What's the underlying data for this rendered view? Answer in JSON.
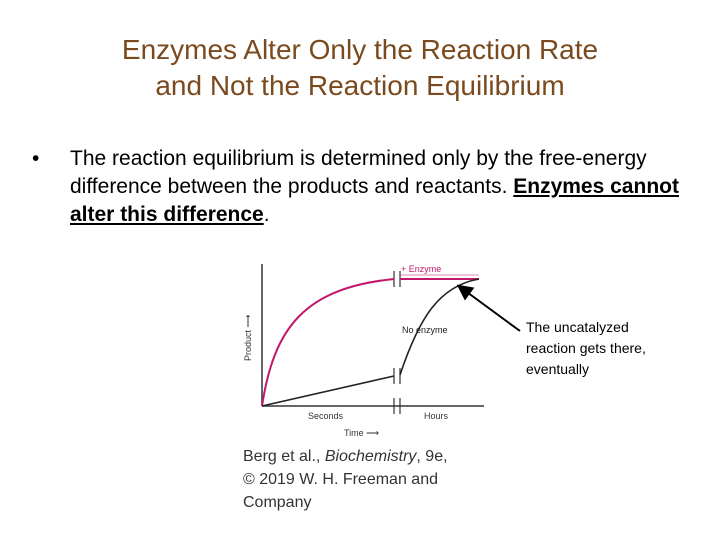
{
  "slide": {
    "title_line1": "Enzymes Alter Only the Reaction Rate",
    "title_line2": "and Not the Reaction Equilibrium",
    "bullet_marker": "•",
    "bullet_text_part1": "The reaction equilibrium is determined only by the free-energy difference between the products and reactants. ",
    "bullet_text_emphasis": "Enzymes cannot alter this difference",
    "bullet_text_end": "."
  },
  "figure": {
    "y_axis_label": "Product ⟶",
    "x_axis_label": "Time ⟶",
    "x_tick_left": "Seconds",
    "x_tick_right": "Hours",
    "curve_enzyme_label": "+ Enzyme",
    "curve_no_enzyme_label": "No enzyme",
    "enzyme_color": "#c2186b",
    "no_enzyme_color": "#222222"
  },
  "citation": {
    "line1_pre": "Berg et al., ",
    "line1_italic": "Biochemistry",
    "line1_post": ", 9e,",
    "line2": "© 2019 W. H. Freeman and",
    "line3": "Company"
  },
  "annotation": {
    "text": "The uncatalyzed reaction gets there, eventually"
  }
}
